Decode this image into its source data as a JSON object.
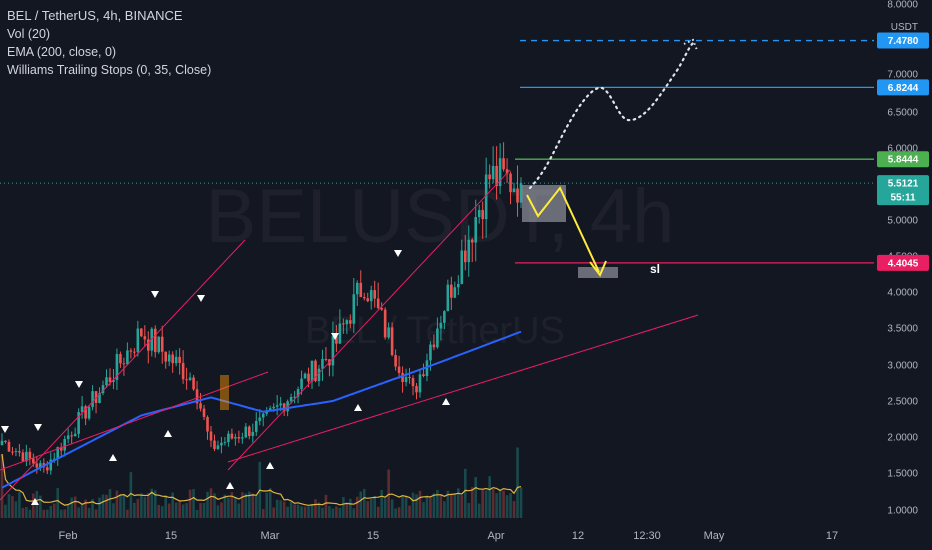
{
  "legend": {
    "symbol": "BEL / TetherUS, 4h, BINANCE",
    "vol": "Vol (20)",
    "ema": "EMA (200, close, 0)",
    "wts": "Williams Trailing Stops (0, 35, Close)"
  },
  "watermark": {
    "big": "BELUSDT, 4h",
    "small": "BEL / TetherUS"
  },
  "sl_label": "sl",
  "colors": {
    "background": "#131722",
    "up": "#26a69a",
    "down": "#ef5350",
    "ema": "#2962ff",
    "volume_ma": "#f5c542",
    "channel": "#e91e63",
    "target_top": "#2196f3",
    "target_mid": "#2196f3",
    "entry": "#4caf50",
    "stop": "#e91e63",
    "price": "#26a69a",
    "path": "#ffeb3b"
  },
  "chart_data": {
    "type": "candlestick",
    "title": "BEL / TetherUS, 4h, BINANCE",
    "y_unit": "USDT",
    "ylim": [
      0.95,
      8.05
    ],
    "y_ticks": [
      "8.0000",
      "7.0000",
      "6.5000",
      "6.0000",
      "5.0000",
      "4.5000",
      "4.0000",
      "3.5000",
      "3.0000",
      "2.5000",
      "2.0000",
      "1.5000",
      "1.0000"
    ],
    "x_ticks": [
      "Feb",
      "15",
      "Mar",
      "15",
      "Apr",
      "12",
      "12:30",
      "May",
      "17"
    ],
    "price_series_key_points": [
      {
        "t": "late Jan",
        "price": 1.95
      },
      {
        "t": "early Feb",
        "price": 1.55
      },
      {
        "t": "mid Feb",
        "price": 3.45
      },
      {
        "t": "late Feb",
        "price": 2.8
      },
      {
        "t": "22 Feb",
        "price": 1.85
      },
      {
        "t": "early Mar",
        "price": 2.2
      },
      {
        "t": "mid Mar",
        "price": 3.2
      },
      {
        "t": "18 Mar",
        "price": 4.15
      },
      {
        "t": "late Mar",
        "price": 2.6
      },
      {
        "t": "early Apr",
        "price": 5.6
      },
      {
        "t": "now",
        "price": 5.5121
      }
    ],
    "ema200_key_points": [
      {
        "t": "late Jan",
        "value": 1.3
      },
      {
        "t": "mid Feb",
        "value": 2.3
      },
      {
        "t": "22 Feb",
        "value": 2.55
      },
      {
        "t": "early Mar",
        "value": 2.35
      },
      {
        "t": "mid Mar",
        "value": 2.5
      },
      {
        "t": "late Mar",
        "value": 2.9
      },
      {
        "t": "now",
        "value": 3.45
      }
    ],
    "horizontal_levels": [
      {
        "name": "target 2",
        "value": 7.478,
        "label": "7.4780",
        "style": "dashed"
      },
      {
        "name": "target 1",
        "value": 6.8244,
        "label": "6.8244",
        "style": "solid"
      },
      {
        "name": "entry",
        "value": 5.8444,
        "label": "5.8444",
        "style": "solid"
      },
      {
        "name": "stop loss",
        "value": 4.4045,
        "label": "4.4045",
        "style": "solid"
      }
    ],
    "last_price": {
      "value": 5.5121,
      "label": "5.5121",
      "countdown": "55:11"
    },
    "grid": false,
    "legend_position": "top-left"
  }
}
